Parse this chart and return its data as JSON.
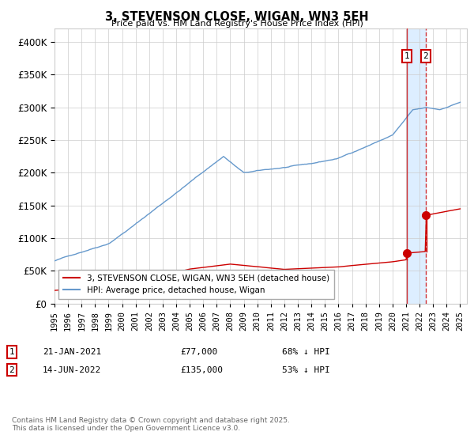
{
  "title": "3, STEVENSON CLOSE, WIGAN, WN3 5EH",
  "subtitle": "Price paid vs. HM Land Registry's House Price Index (HPI)",
  "ylim": [
    0,
    420000
  ],
  "xlim_start": 1995.0,
  "xlim_end": 2025.5,
  "hpi_color": "#6699cc",
  "price_color": "#cc0000",
  "vline1_x": 2021.05,
  "vline2_x": 2022.45,
  "sale1_price": 77000,
  "sale2_price": 135000,
  "sale1_date": "21-JAN-2021",
  "sale2_date": "14-JUN-2022",
  "sale1_hpi": "68% ↓ HPI",
  "sale2_hpi": "53% ↓ HPI",
  "legend_label1": "3, STEVENSON CLOSE, WIGAN, WN3 5EH (detached house)",
  "legend_label2": "HPI: Average price, detached house, Wigan",
  "footer": "Contains HM Land Registry data © Crown copyright and database right 2025.\nThis data is licensed under the Open Government Licence v3.0.",
  "background_color": "#ffffff",
  "grid_color": "#cccccc",
  "shade_color": "#ddeeff",
  "hpi_seed": 42,
  "price_seed": 123
}
